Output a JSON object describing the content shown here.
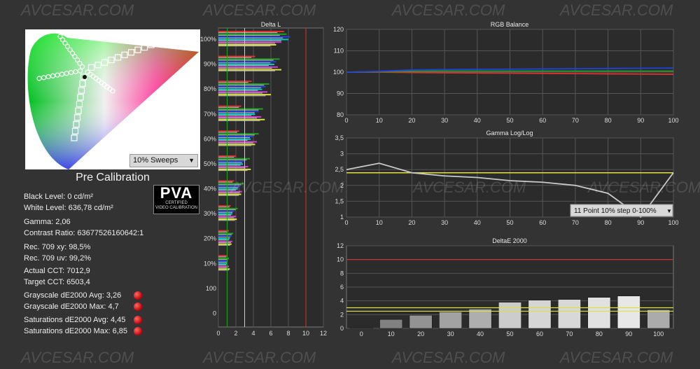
{
  "watermark_text": "AVCESAR.COM",
  "cie": {
    "sweep_dropdown": "10% Sweeps"
  },
  "calibration_title": "Pre Calibration",
  "pva": {
    "logo": "PVA",
    "line1": "CERTIFIED",
    "line2": "VIDEO CALIBRATION"
  },
  "stats": {
    "black_level": "Black Level: 0 cd/m²",
    "white_level": "White Level: 636,78 cd/m²",
    "gamma": "Gamma: 2,06",
    "contrast": "Contrast Ratio: 63677526160642:1",
    "rec709_xy": "Rec. 709 xy: 98,5%",
    "rec709_uv": "Rec. 709 uv: 99,2%",
    "actual_cct": "Actual CCT: 7012,9",
    "target_cct": "Target CCT: 6503,4",
    "gs_avg": "Grayscale dE2000 Avg: 3,26",
    "gs_max": "Grayscale dE2000 Max: 4,7",
    "sat_avg": "Saturations dE2000 Avg: 4,45",
    "sat_max": "Saturations dE2000 Max: 6,85"
  },
  "colors": {
    "red": "#e03030",
    "green": "#20a020",
    "blue": "#2040e0",
    "yellow": "#e0e040",
    "bg": "#333333",
    "plot": "#2b2b2b"
  },
  "chart_data": [
    {
      "type": "bar",
      "title": "Delta L",
      "orientation": "horizontal",
      "categories": [
        "100%",
        "90%",
        "80%",
        "70%",
        "60%",
        "50%",
        "40%",
        "30%",
        "20%",
        "10%",
        "100",
        "0"
      ],
      "xlim": [
        0,
        12
      ],
      "xticks": [
        "0",
        "2",
        "4",
        "6",
        "8",
        "10",
        "12"
      ],
      "reference_lines": [
        {
          "x": 1,
          "color": "#20a020"
        },
        {
          "x": 3,
          "color": "#e0e040"
        },
        {
          "x": 10,
          "color": "#e03030"
        }
      ],
      "series": [
        {
          "color": "#e03030",
          "values": [
            7.5,
            4.2,
            3.8,
            2.6,
            2.4,
            2.0,
            1.8,
            1.4,
            1.2,
            1.0,
            0,
            0
          ]
        },
        {
          "color": "#20a020",
          "values": [
            7.8,
            7.0,
            5.8,
            5.1,
            4.6,
            3.6,
            2.9,
            2.2,
            1.7,
            1.2,
            0,
            0
          ]
        },
        {
          "color": "#2040e0",
          "values": [
            8.2,
            6.6,
            5.4,
            4.6,
            4.0,
            3.0,
            2.5,
            1.8,
            1.5,
            1.1,
            0,
            0
          ]
        },
        {
          "color": "#00c8d0",
          "values": [
            8.0,
            6.4,
            5.0,
            4.2,
            3.7,
            2.8,
            2.2,
            1.6,
            1.3,
            1.0,
            0,
            0
          ]
        },
        {
          "color": "#d040d0",
          "values": [
            7.2,
            6.8,
            5.6,
            4.9,
            4.4,
            3.4,
            2.7,
            2.0,
            1.6,
            1.2,
            0,
            0
          ]
        },
        {
          "color": "#e0e040",
          "values": [
            6.6,
            7.2,
            6.0,
            5.3,
            4.2,
            3.7,
            2.6,
            2.1,
            1.5,
            1.3,
            0,
            0
          ]
        }
      ]
    },
    {
      "type": "line",
      "title": "RGB Balance",
      "x": [
        0,
        10,
        20,
        30,
        40,
        50,
        60,
        70,
        80,
        90,
        100
      ],
      "xlim": [
        0,
        100
      ],
      "ylim": [
        80,
        120
      ],
      "yticks": [
        "80",
        "90",
        "100",
        "110",
        "120"
      ],
      "series": [
        {
          "color": "#e03030",
          "values": [
            100,
            100,
            99.8,
            99.7,
            99.6,
            99.5,
            99.4,
            99.3,
            99.2,
            99.1,
            99.0
          ]
        },
        {
          "color": "#20a020",
          "values": [
            100,
            100.2,
            100.4,
            100.5,
            100.5,
            100.5,
            100.5,
            100.5,
            100.5,
            100.5,
            100.5
          ]
        },
        {
          "color": "#2040e0",
          "values": [
            100,
            100.4,
            101.0,
            101.2,
            101.3,
            101.4,
            101.5,
            101.6,
            101.7,
            101.8,
            101.9
          ]
        }
      ]
    },
    {
      "type": "line",
      "title": "Gamma Log/Log",
      "x": [
        0,
        10,
        20,
        30,
        40,
        50,
        60,
        70,
        80,
        90,
        100
      ],
      "xlim": [
        0,
        100
      ],
      "ylim": [
        1,
        3.5
      ],
      "yticks": [
        "1",
        "1,5",
        "2",
        "2,5",
        "3",
        "3,5"
      ],
      "target": 2.4,
      "dropdown": "11 Point 10% step 0-100%",
      "series": [
        {
          "color": "#c8c8c8",
          "values": [
            2.5,
            2.7,
            2.4,
            2.3,
            2.25,
            2.15,
            2.1,
            2.0,
            1.75,
            1.0,
            2.4
          ]
        }
      ]
    },
    {
      "type": "bar",
      "title": "DeltaE 2000",
      "categories": [
        "0",
        "10",
        "20",
        "30",
        "40",
        "50",
        "60",
        "70",
        "80",
        "90",
        "100"
      ],
      "ylim": [
        0,
        12
      ],
      "yticks": [
        "0",
        "2",
        "4",
        "6",
        "8",
        "10",
        "12"
      ],
      "reference_lines": [
        {
          "y": 10,
          "color": "#e03030"
        },
        {
          "y": 3,
          "color": "#e0e040"
        },
        {
          "y": 2.5,
          "color": "#e0e040"
        }
      ],
      "values": [
        0.1,
        1.3,
        1.9,
        2.4,
        2.8,
        3.8,
        4.1,
        4.2,
        4.5,
        4.7,
        2.7
      ]
    }
  ]
}
